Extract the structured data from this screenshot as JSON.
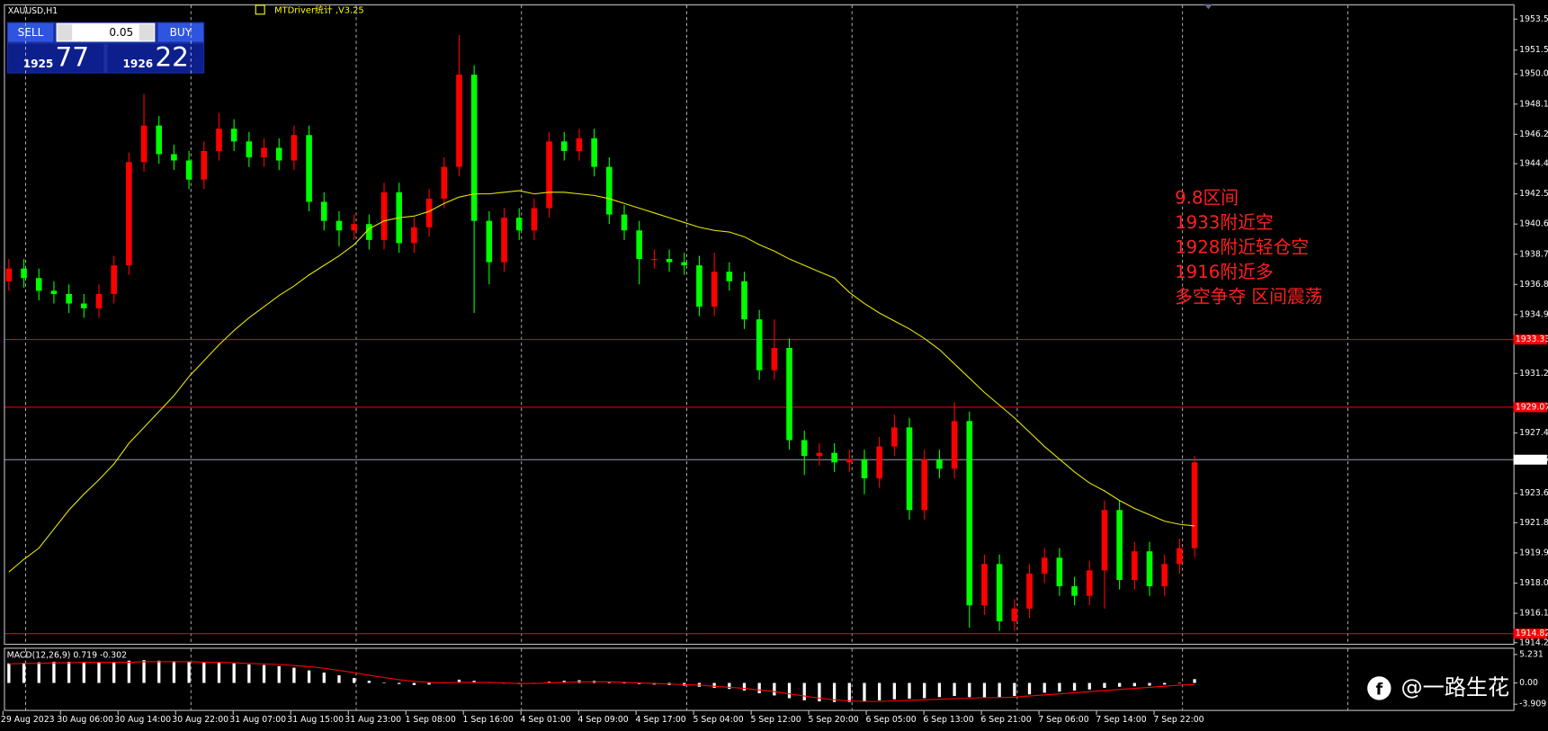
{
  "chart_data": [
    {
      "type": "candlestick",
      "title": "XAUUSD,H1",
      "indicator_label": "MTDriver统计 ,V3.25",
      "x_labels": [
        "29 Aug 2023",
        "30 Aug 06:00",
        "30 Aug 14:00",
        "30 Aug 22:00",
        "31 Aug 07:00",
        "31 Aug 15:00",
        "31 Aug 23:00",
        "1 Sep 08:00",
        "1 Sep 16:00",
        "4 Sep 01:00",
        "4 Sep 09:00",
        "4 Sep 17:00",
        "5 Sep 04:00",
        "5 Sep 12:00",
        "5 Sep 20:00",
        "6 Sep 05:00",
        "6 Sep 13:00",
        "6 Sep 21:00",
        "7 Sep 06:00",
        "7 Sep 14:00",
        "7 Sep 22:00"
      ],
      "open": [
        1937.0,
        1937.8,
        1937.2,
        1936.4,
        1936.2,
        1935.6,
        1935.3,
        1936.2,
        1938.0,
        1944.5,
        1946.8,
        1945.0,
        1944.6,
        1943.4,
        1945.2,
        1946.6,
        1945.8,
        1944.8,
        1945.4,
        1944.6,
        1946.2,
        1942.0,
        1940.8,
        1940.2,
        1940.6,
        1939.6,
        1942.6,
        1939.4,
        1940.4,
        1942.2,
        1944.2,
        1950.0,
        1940.8,
        1938.2,
        1941.0,
        1940.2,
        1941.6,
        1945.8,
        1945.2,
        1946.0,
        1944.2,
        1941.2,
        1940.2,
        1938.4,
        1938.4,
        1938.2,
        1938.0,
        1935.4,
        1937.6,
        1937.0,
        1934.6,
        1931.4,
        1932.8,
        1927.0,
        1926.0,
        1926.2,
        1925.6,
        1925.8,
        1924.6,
        1926.6,
        1927.8,
        1922.6,
        1925.8,
        1925.2,
        1928.2,
        1916.6,
        1919.2,
        1915.6,
        1916.4,
        1918.6,
        1919.6,
        1917.8,
        1917.2,
        1918.8,
        1922.6,
        1918.2,
        1920.0,
        1917.8,
        1919.2,
        1920.2
      ],
      "high": [
        1938.4,
        1938.4,
        1937.8,
        1937.0,
        1936.8,
        1936.2,
        1936.8,
        1938.6,
        1945.1,
        1948.8,
        1947.4,
        1945.6,
        1945.2,
        1945.8,
        1947.6,
        1947.2,
        1946.4,
        1946.0,
        1946.0,
        1946.8,
        1946.8,
        1942.6,
        1941.4,
        1941.2,
        1941.2,
        1943.2,
        1943.2,
        1941.0,
        1942.8,
        1944.8,
        1952.5,
        1950.6,
        1941.4,
        1941.6,
        1941.6,
        1942.2,
        1946.4,
        1946.4,
        1946.6,
        1946.6,
        1944.8,
        1941.8,
        1940.8,
        1939.0,
        1939.0,
        1938.8,
        1938.6,
        1938.8,
        1938.2,
        1937.6,
        1935.2,
        1934.6,
        1933.4,
        1927.6,
        1926.8,
        1926.8,
        1926.4,
        1926.4,
        1927.2,
        1928.6,
        1928.4,
        1926.4,
        1926.4,
        1929.4,
        1928.8,
        1919.8,
        1919.8,
        1917.0,
        1919.2,
        1920.2,
        1920.2,
        1918.4,
        1919.4,
        1923.2,
        1923.2,
        1920.6,
        1920.6,
        1919.8,
        1920.8,
        1926.0
      ],
      "low": [
        1936.4,
        1936.6,
        1935.8,
        1935.6,
        1935.0,
        1934.7,
        1934.7,
        1935.6,
        1937.4,
        1943.9,
        1944.4,
        1944.0,
        1942.8,
        1942.8,
        1944.6,
        1945.2,
        1944.2,
        1944.2,
        1944.0,
        1944.0,
        1941.4,
        1940.2,
        1939.2,
        1939.6,
        1939.0,
        1939.0,
        1938.8,
        1938.8,
        1939.8,
        1941.6,
        1943.6,
        1935.0,
        1936.8,
        1937.6,
        1939.6,
        1939.6,
        1941.0,
        1944.6,
        1944.6,
        1943.6,
        1940.6,
        1939.6,
        1936.8,
        1937.8,
        1937.6,
        1937.4,
        1934.8,
        1934.8,
        1936.4,
        1934.0,
        1930.8,
        1930.8,
        1926.4,
        1924.8,
        1925.4,
        1925.0,
        1925.0,
        1923.6,
        1924.0,
        1926.0,
        1922.0,
        1922.0,
        1924.6,
        1924.6,
        1915.2,
        1916.0,
        1915.0,
        1915.0,
        1915.8,
        1918.0,
        1917.2,
        1916.6,
        1916.6,
        1916.4,
        1917.6,
        1917.6,
        1917.2,
        1917.2,
        1918.6,
        1919.6
      ],
      "close": [
        1937.8,
        1937.2,
        1936.4,
        1936.2,
        1935.6,
        1935.3,
        1936.2,
        1938.0,
        1944.5,
        1946.8,
        1945.0,
        1944.6,
        1943.4,
        1945.2,
        1946.6,
        1945.8,
        1944.8,
        1945.4,
        1944.6,
        1946.2,
        1942.0,
        1940.8,
        1940.2,
        1940.6,
        1939.6,
        1942.6,
        1939.4,
        1940.4,
        1942.2,
        1944.2,
        1950.0,
        1940.8,
        1938.2,
        1941.0,
        1940.2,
        1941.6,
        1945.8,
        1945.2,
        1946.0,
        1944.2,
        1941.2,
        1940.2,
        1938.4,
        1938.4,
        1938.2,
        1938.0,
        1935.4,
        1937.6,
        1937.0,
        1934.6,
        1931.4,
        1932.8,
        1927.0,
        1926.0,
        1926.2,
        1925.6,
        1925.8,
        1924.6,
        1926.6,
        1927.8,
        1922.6,
        1925.8,
        1925.2,
        1928.2,
        1916.6,
        1919.2,
        1915.6,
        1916.4,
        1918.6,
        1919.6,
        1917.8,
        1917.2,
        1918.8,
        1922.6,
        1918.2,
        1920.0,
        1917.8,
        1919.2,
        1920.2,
        1925.6
      ],
      "up_color": "#ff0000",
      "down_color": "#00ff00",
      "ma": {
        "color": "#e6e600",
        "values": [
          1918.7,
          1919.5,
          1920.2,
          1921.4,
          1922.6,
          1923.6,
          1924.5,
          1925.5,
          1926.8,
          1927.8,
          1928.8,
          1929.8,
          1931.0,
          1932.0,
          1933.0,
          1933.9,
          1934.7,
          1935.4,
          1936.1,
          1936.7,
          1937.4,
          1938.0,
          1938.6,
          1939.3,
          1940.3,
          1940.8,
          1941.0,
          1941.1,
          1941.4,
          1941.9,
          1942.3,
          1942.5,
          1942.5,
          1942.6,
          1942.7,
          1942.5,
          1942.6,
          1942.6,
          1942.5,
          1942.4,
          1942.2,
          1941.9,
          1941.6,
          1941.3,
          1941.0,
          1940.7,
          1940.4,
          1940.2,
          1940.1,
          1939.8,
          1939.3,
          1938.9,
          1938.4,
          1938.0,
          1937.6,
          1937.2,
          1936.3,
          1935.6,
          1935.0,
          1934.5,
          1934.0,
          1933.4,
          1932.7,
          1931.8,
          1930.9,
          1930.0,
          1929.2,
          1928.4,
          1927.5,
          1926.6,
          1925.8,
          1925.0,
          1924.3,
          1923.8,
          1923.2,
          1922.7,
          1922.3,
          1921.9,
          1921.7,
          1921.6
        ]
      },
      "ylim": [
        1914.18,
        1954.37
      ],
      "yticks": [
        {
          "value": 1953.5,
          "label": "1953.50"
        },
        1951.55,
        1950.05,
        1948.15,
        1946.25,
        {
          "value": 1944.4,
          "label": "1944.40"
        },
        {
          "value": 1942.5,
          "label": "1942.50"
        },
        {
          "value": 1940.6,
          "label": "1940.60"
        },
        {
          "value": 1938.7,
          "label": "1938.70"
        },
        {
          "value": 1936.8,
          "label": "1936.80"
        },
        {
          "value": 1934.9,
          "label": "1934.90"
        },
        {
          "value": 1931.2,
          "label": "1931.20"
        },
        1927.45,
        1923.65,
        {
          "value": 1921.8,
          "label": "1921.80"
        },
        {
          "value": 1919.9,
          "label": "1919.90"
        },
        {
          "value": 1918,
          "label": "1918.00"
        },
        {
          "value": 1916.1,
          "label": "1916.10"
        },
        1914.25
      ],
      "levels": [
        1933.33,
        1929.07,
        1914.82
      ],
      "level_color": "#ff0000",
      "last_price": 1925.77,
      "annotations": [
        "9.8区间",
        "1933附近空",
        "1928附近轻仓空",
        "1916附近多",
        "多空争夺 区间震荡"
      ],
      "annotation_color": "#ff2020"
    },
    {
      "type": "macd",
      "label": "MACD(12,26,9) 0.719 -0.302",
      "ylim": [
        -4.96,
        6.29
      ],
      "yticks": [
        5.231,
        {
          "value": 0,
          "label": "0.00"
        },
        -3.909
      ],
      "histogram": {
        "color": "#ffffff",
        "values": [
          3.6,
          3.7,
          3.8,
          3.9,
          3.9,
          3.8,
          3.8,
          3.9,
          4.1,
          4.2,
          4.1,
          4.0,
          3.9,
          3.8,
          3.7,
          3.6,
          3.4,
          3.3,
          3.1,
          2.8,
          2.3,
          1.9,
          1.4,
          0.9,
          0.4,
          0.1,
          -0.2,
          -0.4,
          -0.3,
          0.1,
          0.6,
          0.4,
          0.1,
          -0.1,
          -0.2,
          -0.1,
          0.2,
          0.4,
          0.5,
          0.4,
          0.2,
          0.0,
          -0.2,
          -0.3,
          -0.4,
          -0.5,
          -0.7,
          -0.9,
          -1.1,
          -1.4,
          -1.9,
          -2.3,
          -2.8,
          -3.2,
          -3.4,
          -3.5,
          -3.5,
          -3.4,
          -3.2,
          -3.0,
          -2.9,
          -2.8,
          -2.6,
          -2.4,
          -2.6,
          -2.7,
          -2.6,
          -2.4,
          -2.1,
          -1.8,
          -1.6,
          -1.4,
          -1.2,
          -0.9,
          -0.7,
          -0.6,
          -0.5,
          -0.3,
          0.0,
          0.7
        ]
      },
      "signal": {
        "color": "#ff0000",
        "values": [
          3.5,
          3.6,
          3.6,
          3.7,
          3.7,
          3.8,
          3.8,
          3.8,
          3.8,
          3.9,
          3.9,
          3.9,
          3.9,
          3.8,
          3.8,
          3.7,
          3.6,
          3.5,
          3.4,
          3.2,
          3.0,
          2.7,
          2.3,
          1.9,
          1.4,
          1.0,
          0.6,
          0.3,
          0.1,
          0.0,
          0.1,
          0.1,
          0.1,
          0.0,
          -0.1,
          -0.1,
          0.0,
          0.1,
          0.2,
          0.2,
          0.2,
          0.1,
          0.0,
          -0.1,
          -0.2,
          -0.3,
          -0.4,
          -0.6,
          -0.8,
          -1.0,
          -1.3,
          -1.6,
          -2.0,
          -2.4,
          -2.8,
          -3.1,
          -3.3,
          -3.4,
          -3.4,
          -3.3,
          -3.2,
          -3.1,
          -3.0,
          -2.9,
          -2.8,
          -2.7,
          -2.7,
          -2.6,
          -2.4,
          -2.2,
          -2.0,
          -1.8,
          -1.6,
          -1.4,
          -1.2,
          -1.0,
          -0.8,
          -0.6,
          -0.4,
          -0.3
        ]
      }
    }
  ],
  "trade_panel": {
    "sell": "SELL",
    "buy": "BUY",
    "lot": "0.05",
    "sell_big": "1925",
    "sell_small": "77",
    "buy_big": "1926",
    "buy_small": "22"
  },
  "watermark": "@一路生花"
}
